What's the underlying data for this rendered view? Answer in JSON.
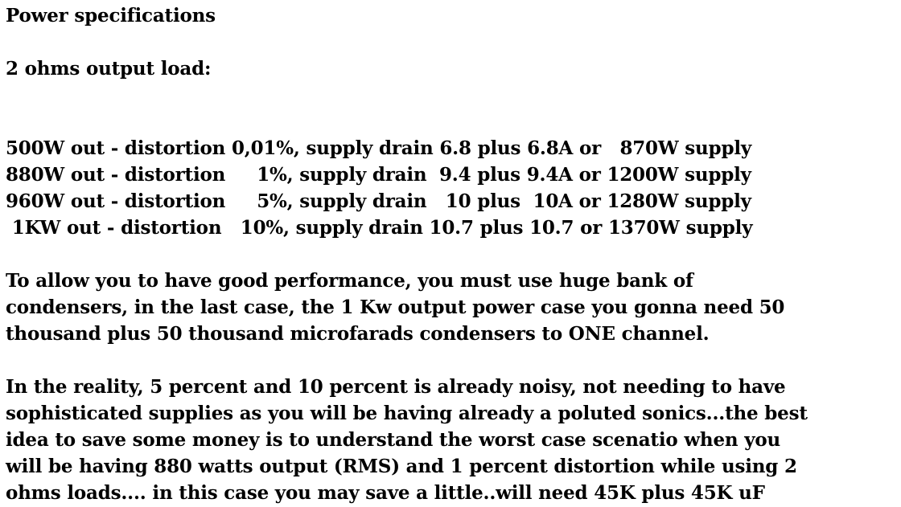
{
  "heading": "Power specifications",
  "subheading": "2 ohms output load:",
  "spec_lines": [
    "500W out - distortion 0,01%, supply drain 6.8 plus 6.8A or   870W supply",
    "880W out - distortion     1%, supply drain  9.4 plus 9.4A or 1200W supply",
    "960W out - distortion     5%, supply drain   10 plus  10A or 1280W supply",
    " 1KW out - distortion   10%, supply drain 10.7 plus 10.7 or 1370W supply"
  ],
  "paragraph1": [
    "To allow you to have good performance, you must use huge bank of",
    "condensers, in the last case, the 1 Kw output power case you gonna need 50",
    "thousand plus 50 thousand microfarads condensers to ONE channel."
  ],
  "paragraph2": [
    "In the reality, 5 percent and 10 percent is already noisy, not needing to have",
    "sophisticated supplies as you will be having already a poluted sonics...the best",
    "idea to save some money is to understand the worst case scenatio when you",
    "will be having 880 watts output (RMS) and 1 percent distortion while using 2",
    "ohms loads.... in this case you may save a little..will need 45K plus 45K uF"
  ]
}
